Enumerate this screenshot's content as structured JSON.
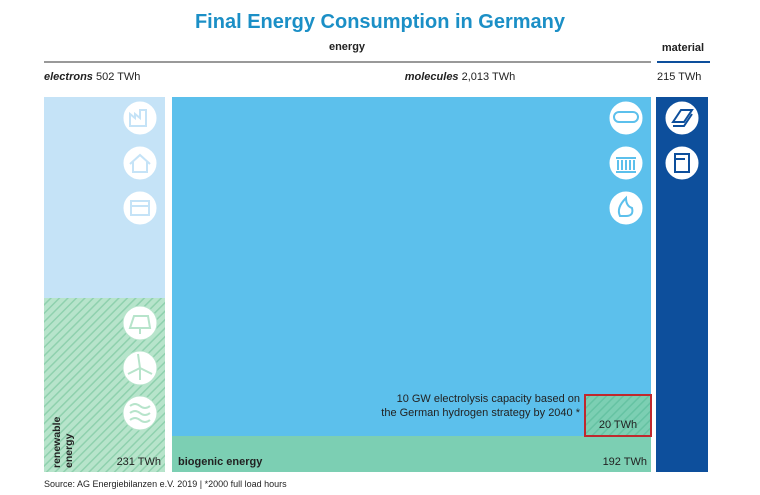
{
  "header": {
    "title": "Final Energy Consumption in Germany",
    "energy": "energy",
    "material": "material"
  },
  "columns": {
    "electrons": {
      "name": "electrons",
      "amount": "502 TWh",
      "renewable": "renewable energy",
      "renewable_amount": "231 TWh"
    },
    "molecules": {
      "name": "molecules",
      "amount": "2,013 TWh",
      "biogenic": "biogenic energy",
      "biogenic_amount": "192 TWh",
      "note_line1": "10 GW electrolysis capacity based on",
      "note_line2": "the German hydrogen strategy by 2040 *",
      "hydrogen_amount": "20 TWh"
    },
    "material": {
      "amount": "215 TWh"
    }
  },
  "footer": {
    "source": "Source: AG Energiebilanzen e.V. 2019 | *2000 full load hours"
  }
}
